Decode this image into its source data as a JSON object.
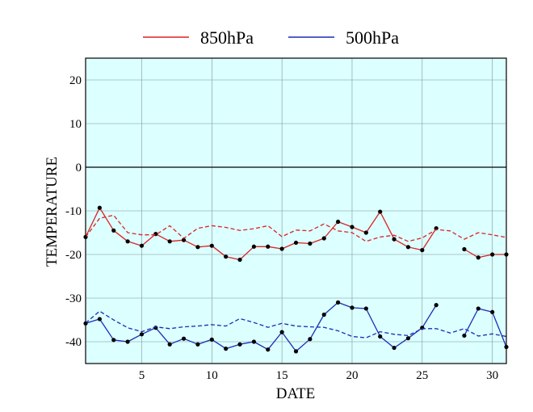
{
  "chart_data": {
    "type": "line",
    "xlabel": "DATE",
    "ylabel": "TEMPERATURE",
    "xlim": [
      1,
      31
    ],
    "ylim": [
      -45,
      25
    ],
    "x_ticks": [
      5,
      10,
      15,
      20,
      25,
      30
    ],
    "y_ticks": [
      -40,
      -30,
      -20,
      -10,
      0,
      10,
      20
    ],
    "grid": true,
    "legend_position": "top",
    "background_color": "#dcffff",
    "zero_line": 0,
    "x": [
      1,
      2,
      3,
      4,
      5,
      6,
      7,
      8,
      9,
      10,
      11,
      12,
      13,
      14,
      15,
      16,
      17,
      18,
      19,
      20,
      21,
      22,
      23,
      24,
      25,
      26,
      27,
      28,
      29,
      30,
      31
    ],
    "series": [
      {
        "name": "850hPa",
        "color": "#dd2222",
        "style": "solid",
        "markers": true,
        "values": [
          -16.0,
          -9.3,
          -14.5,
          -17.0,
          -18.0,
          -15.3,
          -17.0,
          -16.7,
          -18.3,
          -18.0,
          -20.5,
          -21.2,
          -18.2,
          -18.2,
          -18.7,
          -17.3,
          -17.5,
          -16.3,
          -12.5,
          -13.7,
          -15.0,
          -10.2,
          -16.5,
          -18.3,
          -19.0,
          -14.0,
          null,
          -18.8,
          -20.7,
          -20.0,
          -20.0
        ]
      },
      {
        "name": "",
        "color": "#dd2222",
        "style": "dashed",
        "markers": false,
        "values": [
          -16.0,
          -11.7,
          -11.0,
          -15.0,
          -15.5,
          -15.5,
          -13.4,
          -16.3,
          -14.0,
          -13.4,
          -13.8,
          -14.5,
          -14.1,
          -13.4,
          -15.9,
          -14.4,
          -14.6,
          -13.0,
          -14.6,
          -15.0,
          -17.0,
          -16.0,
          -15.6,
          -17.0,
          -16.2,
          -14.3,
          -14.6,
          -16.5,
          -15.0,
          -15.5,
          -16.1
        ]
      },
      {
        "name": "500hPa",
        "color": "#1a2db4",
        "style": "solid",
        "markers": true,
        "values": [
          -35.8,
          -34.8,
          -39.6,
          -40.0,
          -38.3,
          -36.8,
          -40.6,
          -39.3,
          -40.6,
          -39.5,
          -41.6,
          -40.6,
          -40.0,
          -41.8,
          -37.8,
          -42.2,
          -39.4,
          -33.8,
          -31.0,
          -32.2,
          -32.4,
          -38.8,
          -41.4,
          -39.2,
          -36.8,
          -31.6,
          null,
          -38.6,
          -32.4,
          -33.2,
          -41.2
        ]
      },
      {
        "name": "",
        "color": "#1a2db4",
        "style": "dashed",
        "markers": false,
        "values": [
          -35.7,
          -33.0,
          -35.0,
          -36.8,
          -37.7,
          -36.6,
          -37.0,
          -36.6,
          -36.4,
          -36.1,
          -36.4,
          -34.7,
          -35.6,
          -36.7,
          -35.8,
          -36.4,
          -36.6,
          -36.7,
          -37.5,
          -38.8,
          -39.1,
          -37.7,
          -38.3,
          -38.6,
          -37.0,
          -37.0,
          -38.0,
          -37.0,
          -38.7,
          -38.2,
          -38.8
        ]
      }
    ]
  }
}
